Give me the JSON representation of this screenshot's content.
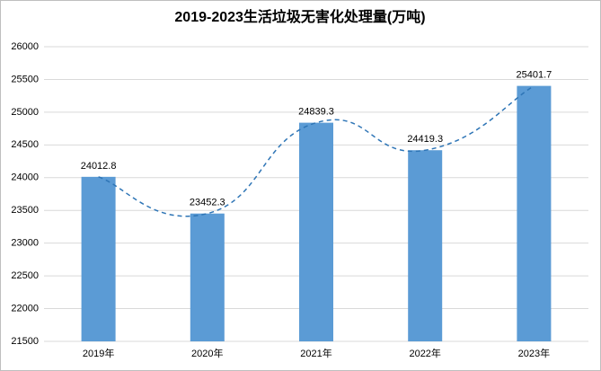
{
  "chart_data": {
    "type": "bar",
    "title": "2019-2023生活垃圾无害化处理量(万吨)",
    "categories": [
      "2019年",
      "2020年",
      "2021年",
      "2022年",
      "2023年"
    ],
    "values": [
      24012.8,
      23452.3,
      24839.3,
      24419.3,
      25401.7
    ],
    "color": "#5b9bd5",
    "trend_color": "#2e75b6",
    "ylim": [
      21500,
      26000
    ],
    "yticks": [
      21500,
      22000,
      22500,
      23000,
      23500,
      24000,
      24500,
      25000,
      25500,
      26000
    ],
    "grid": true
  }
}
